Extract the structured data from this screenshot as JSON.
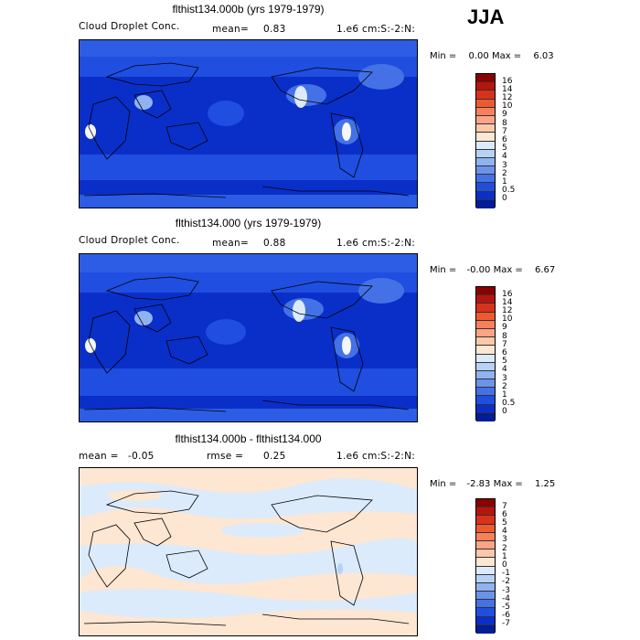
{
  "season": "JJA",
  "panels": [
    {
      "title": "flthist134.000b (yrs 1979-1979)",
      "field": "Cloud Droplet Conc.",
      "mean_label": "mean=",
      "mean_value": "0.83",
      "units": "1.e6 cm:S:-2:N:",
      "min_label": "Min =",
      "min_value": "0.00",
      "max_label": "Max =",
      "max_value": "6.03",
      "colorbar_ticks": [
        "16",
        "14",
        "12",
        "10",
        "9",
        "8",
        "7",
        "6",
        "5",
        "4",
        "3",
        "2",
        "1",
        "0.5",
        "0"
      ],
      "colorbar_colors": [
        "#8b0000",
        "#b8140e",
        "#d8321c",
        "#ee5a30",
        "#f7805a",
        "#fba586",
        "#fdc8aa",
        "#fde6d2",
        "#dcebfb",
        "#b8d2f6",
        "#8fb3f0",
        "#6a93ea",
        "#4472e6",
        "#1f4ee0",
        "#0a2fc8",
        "#031c98"
      ]
    },
    {
      "title": "flthist134.000 (yrs 1979-1979)",
      "field": "Cloud Droplet Conc.",
      "mean_label": "mean=",
      "mean_value": "0.88",
      "units": "1.e6 cm:S:-2:N:",
      "min_label": "Min =",
      "min_value": "-0.00",
      "max_label": "Max =",
      "max_value": "6.67",
      "colorbar_ticks": [
        "16",
        "14",
        "12",
        "10",
        "9",
        "8",
        "7",
        "6",
        "5",
        "4",
        "3",
        "2",
        "1",
        "0.5",
        "0"
      ],
      "colorbar_colors": [
        "#8b0000",
        "#b8140e",
        "#d8321c",
        "#ee5a30",
        "#f7805a",
        "#fba586",
        "#fdc8aa",
        "#fde6d2",
        "#dcebfb",
        "#b8d2f6",
        "#8fb3f0",
        "#6a93ea",
        "#4472e6",
        "#1f4ee0",
        "#0a2fc8",
        "#031c98"
      ]
    },
    {
      "title": "flthist134.000b - flthist134.000",
      "field": "",
      "mean_label": "mean =",
      "mean_value": "-0.05",
      "rmse_label": "rmse =",
      "rmse_value": "0.25",
      "units": "1.e6 cm:S:-2:N:",
      "min_label": "Min =",
      "min_value": "-2.83",
      "max_label": "Max =",
      "max_value": "1.25",
      "colorbar_ticks": [
        "7",
        "6",
        "5",
        "4",
        "3",
        "2",
        "1",
        "0",
        "-1",
        "-2",
        "-3",
        "-4",
        "-5",
        "-6",
        "-7"
      ],
      "colorbar_colors": [
        "#8b0000",
        "#b8140e",
        "#d8321c",
        "#ee5a30",
        "#f7805a",
        "#fba586",
        "#fdc8aa",
        "#fde6d2",
        "#dcebfb",
        "#b8d2f6",
        "#8fb3f0",
        "#6a93ea",
        "#4472e6",
        "#1f4ee0",
        "#0a2fc8",
        "#031c98"
      ]
    }
  ],
  "colors": {
    "map_deep_blue": "#0a2fc8",
    "map_mid_blue": "#1f4ee0",
    "map_light_blue": "#4472e6",
    "map_pale_blue": "#8fb3f0",
    "map_white": "#f4f6fc",
    "diff_pale_blue": "#dcebfb",
    "diff_pale_orange": "#fde6d2"
  }
}
